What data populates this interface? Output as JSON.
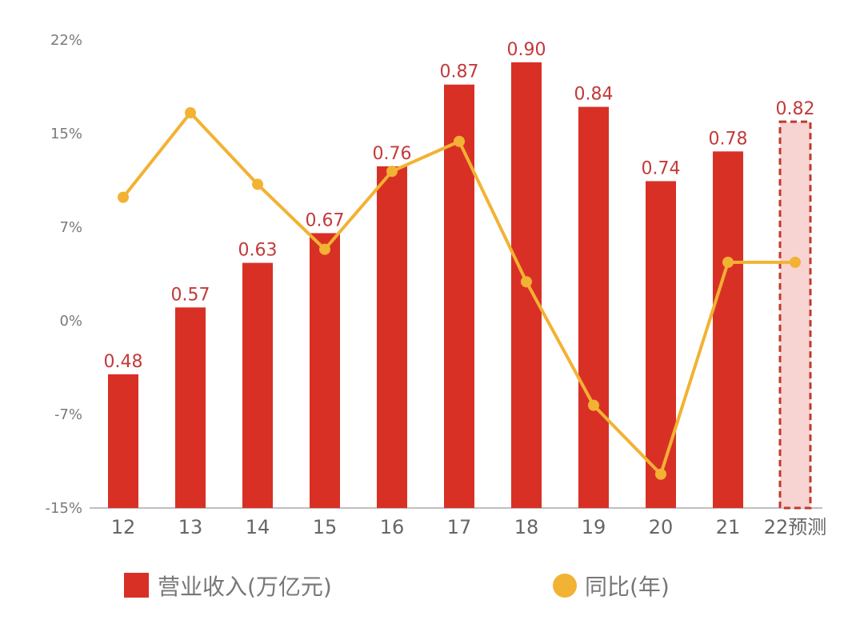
{
  "chart_data": {
    "type": "bar",
    "categories": [
      "12",
      "13",
      "14",
      "15",
      "16",
      "17",
      "18",
      "19",
      "20",
      "21",
      "22预测"
    ],
    "series": [
      {
        "name": "营业收入(万亿元)",
        "type": "bar",
        "axis": "left",
        "values": [
          0.48,
          0.57,
          0.63,
          0.67,
          0.76,
          0.87,
          0.9,
          0.84,
          0.74,
          0.78,
          0.82
        ],
        "labels": [
          "0.48",
          "0.57",
          "0.63",
          "0.67",
          "0.76",
          "0.87",
          "0.90",
          "0.84",
          "0.74",
          "0.78",
          "0.82"
        ],
        "color": "#d93025",
        "forecast_index": 10,
        "forecast_fill": "#f7d4d2",
        "forecast_border": "#c0392b"
      },
      {
        "name": "同比(年)",
        "type": "line",
        "axis": "right",
        "values": [
          9.5,
          16.0,
          10.5,
          5.5,
          11.5,
          13.8,
          3.0,
          -6.5,
          -11.8,
          4.5,
          4.5
        ],
        "unit": "%",
        "color": "#f2b233"
      }
    ],
    "y_axis": {
      "ticks": [
        "22%",
        "15%",
        "7%",
        "0%",
        "-7%",
        "-15%"
      ],
      "tick_values": [
        21.6,
        14.4,
        7.2,
        0,
        -7.2,
        -14.4
      ],
      "ylim": [
        -14.4,
        21.6
      ]
    },
    "bar_axis": {
      "ylim": [
        0.3,
        0.93
      ]
    },
    "legend": {
      "position": "bottom"
    }
  }
}
